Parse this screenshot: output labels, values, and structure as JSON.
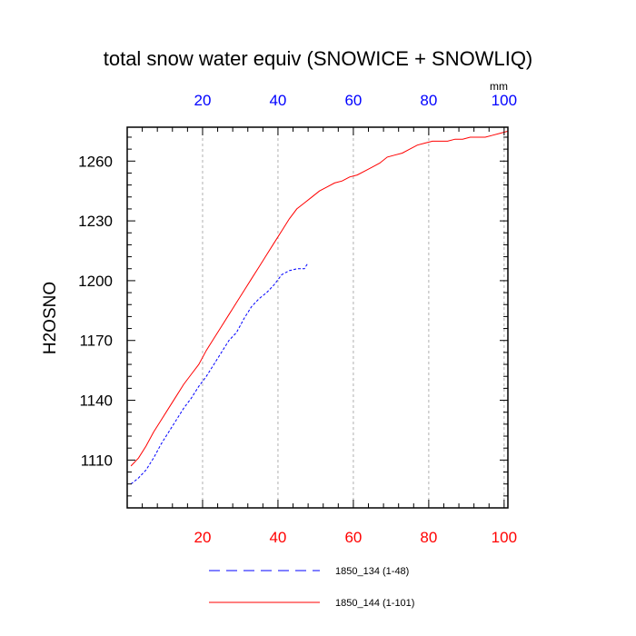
{
  "chart_data": {
    "type": "line",
    "title": "total snow water equiv (SNOWICE + SNOWLIQ)",
    "ylabel": "H2OSNO",
    "top_axis_unit": "mm",
    "xlim": [
      0,
      101
    ],
    "ylim": [
      1086,
      1277
    ],
    "x_ticks": [
      20,
      40,
      60,
      80,
      100
    ],
    "y_ticks": [
      1110,
      1140,
      1170,
      1200,
      1230,
      1260
    ],
    "grid": "vertical dashed lines at x ticks",
    "bottom_tick_color": "#ff0000",
    "top_tick_color": "#0000ff",
    "series": [
      {
        "name": "1850_134 (1-48)",
        "color": "#0000ff",
        "dash": "dashed",
        "x": [
          1,
          3,
          5,
          7,
          9,
          11,
          13,
          15,
          17,
          19,
          21,
          23,
          25,
          27,
          29,
          31,
          33,
          35,
          37,
          39,
          41,
          43,
          45,
          47,
          48
        ],
        "y": [
          1098,
          1101,
          1105,
          1111,
          1118,
          1124,
          1130,
          1136,
          1141,
          1147,
          1152,
          1158,
          1164,
          1170,
          1174,
          1181,
          1187,
          1191,
          1194,
          1198,
          1203,
          1205,
          1206,
          1206,
          1209
        ]
      },
      {
        "name": "1850_144 (1-101)",
        "color": "#ff0000",
        "dash": "solid",
        "x": [
          1,
          3,
          5,
          7,
          9,
          11,
          13,
          15,
          17,
          19,
          21,
          23,
          25,
          27,
          29,
          31,
          33,
          35,
          37,
          39,
          41,
          43,
          45,
          47,
          49,
          51,
          53,
          55,
          57,
          59,
          61,
          63,
          65,
          67,
          69,
          71,
          73,
          75,
          77,
          79,
          81,
          83,
          85,
          87,
          89,
          91,
          93,
          95,
          97,
          99,
          101
        ],
        "y": [
          1107,
          1111,
          1117,
          1124,
          1130,
          1136,
          1142,
          1148,
          1153,
          1158,
          1165,
          1171,
          1177,
          1183,
          1189,
          1195,
          1201,
          1207,
          1213,
          1219,
          1225,
          1231,
          1236,
          1239,
          1242,
          1245,
          1247,
          1249,
          1250,
          1252,
          1253,
          1255,
          1257,
          1259,
          1262,
          1263,
          1264,
          1266,
          1268,
          1269,
          1270,
          1270,
          1270,
          1271,
          1271,
          1272,
          1272,
          1272,
          1273,
          1274,
          1275
        ]
      }
    ]
  }
}
